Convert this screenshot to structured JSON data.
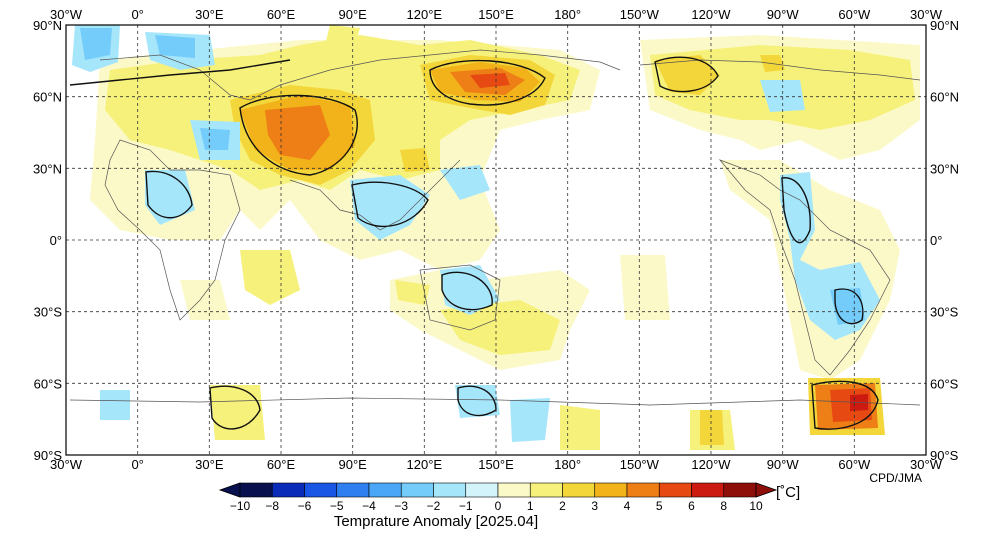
{
  "map": {
    "title": "Temprature Anomaly [2025.04]",
    "credit": "CPD/JMA",
    "units": "[˚C]",
    "lon_labels": [
      "30°W",
      "0°",
      "30°E",
      "60°E",
      "90°E",
      "120°E",
      "150°E",
      "180°",
      "150°W",
      "120°W",
      "90°W",
      "60°W",
      "30°W"
    ],
    "lat_labels": [
      "90°N",
      "60°N",
      "30°N",
      "0°",
      "30°S",
      "60°S",
      "90°S"
    ],
    "colorbar": {
      "levels": [
        "−10",
        "−8",
        "−6",
        "−5",
        "−4",
        "−3",
        "−2",
        "−1",
        "0",
        "1",
        "2",
        "3",
        "4",
        "5",
        "6",
        "8",
        "10"
      ],
      "colors": [
        "#08104e",
        "#0a2bb7",
        "#1a56e6",
        "#2f7ff0",
        "#4aa6f6",
        "#74ccfa",
        "#a6e6fb",
        "#d4f4fb",
        "#fcf9c9",
        "#f6f17a",
        "#f3d63a",
        "#f2b21a",
        "#ee7f16",
        "#e64a12",
        "#cc1a10",
        "#8e0e0a"
      ],
      "low_color": "#08104e",
      "high_color": "#8e0e0a"
    }
  }
}
